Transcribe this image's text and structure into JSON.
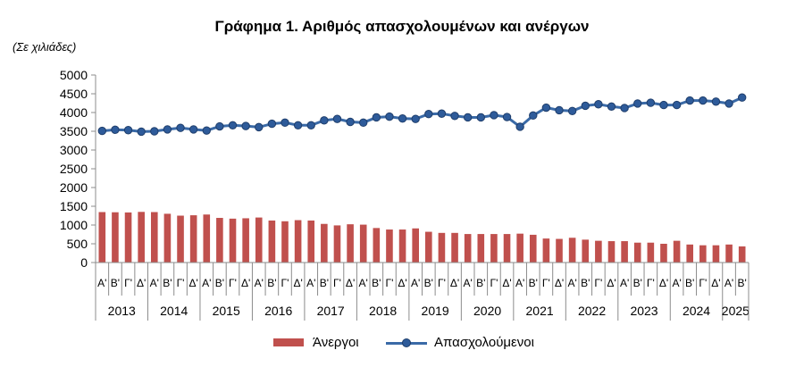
{
  "chart_data": {
    "type": "bar+line",
    "title": "Γράφημα 1. Αριθμός απασχολουμένων και ανέργων",
    "unit_label": "(Σε χιλιάδες)",
    "xlabel": "",
    "ylabel": "",
    "ylim": [
      0,
      5000
    ],
    "yticks": [
      0,
      500,
      1000,
      1500,
      2000,
      2500,
      3000,
      3500,
      4000,
      4500,
      5000
    ],
    "grid": false,
    "legend_position": "bottom",
    "categories": [
      "Α'",
      "Β'",
      "Γ'",
      "Δ'",
      "Α'",
      "Β'",
      "Γ'",
      "Δ'",
      "Α'",
      "Β'",
      "Γ'",
      "Δ'",
      "Α'",
      "Β'",
      "Γ'",
      "Δ'",
      "Α'",
      "Β'",
      "Γ'",
      "Δ'",
      "Α'",
      "Β'",
      "Γ'",
      "Δ'",
      "Α'",
      "Β'",
      "Γ'",
      "Δ'",
      "Α'",
      "Β'",
      "Γ'",
      "Δ'",
      "Α'",
      "Β'",
      "Γ'",
      "Δ'",
      "Α'",
      "Β'",
      "Γ'",
      "Δ'",
      "Α'",
      "Β'",
      "Γ'",
      "Δ'",
      "Α'",
      "Β'",
      "Γ'",
      "Δ'",
      "Α'",
      "Β'"
    ],
    "years": [
      {
        "label": "2013",
        "quarters": 4
      },
      {
        "label": "2014",
        "quarters": 4
      },
      {
        "label": "2015",
        "quarters": 4
      },
      {
        "label": "2016",
        "quarters": 4
      },
      {
        "label": "2017",
        "quarters": 4
      },
      {
        "label": "2018",
        "quarters": 4
      },
      {
        "label": "2019",
        "quarters": 4
      },
      {
        "label": "2020",
        "quarters": 4
      },
      {
        "label": "2021",
        "quarters": 4
      },
      {
        "label": "2022",
        "quarters": 4
      },
      {
        "label": "2023",
        "quarters": 4
      },
      {
        "label": "2024",
        "quarters": 4
      },
      {
        "label": "2025",
        "quarters": 2
      }
    ],
    "series": [
      {
        "name": "Άνεργοι",
        "type": "bar",
        "color": "#c0504d",
        "values": [
          1345,
          1340,
          1335,
          1350,
          1345,
          1300,
          1250,
          1260,
          1280,
          1190,
          1170,
          1180,
          1200,
          1120,
          1100,
          1130,
          1120,
          1030,
          990,
          1020,
          1010,
          920,
          880,
          880,
          910,
          820,
          790,
          790,
          760,
          760,
          760,
          760,
          770,
          740,
          640,
          630,
          660,
          610,
          580,
          570,
          570,
          530,
          530,
          500,
          580,
          480,
          460,
          460,
          480,
          430
        ]
      },
      {
        "name": "Απασχολούμενοι",
        "type": "line",
        "color": "#3a6aa7",
        "values": [
          3510,
          3540,
          3530,
          3490,
          3500,
          3550,
          3590,
          3550,
          3520,
          3630,
          3660,
          3640,
          3610,
          3700,
          3730,
          3660,
          3660,
          3790,
          3830,
          3750,
          3730,
          3870,
          3890,
          3840,
          3830,
          3960,
          3970,
          3910,
          3870,
          3870,
          3930,
          3880,
          3620,
          3920,
          4130,
          4060,
          4040,
          4180,
          4220,
          4160,
          4120,
          4240,
          4260,
          4200,
          4200,
          4320,
          4320,
          4290,
          4240,
          4400
        ]
      }
    ]
  }
}
